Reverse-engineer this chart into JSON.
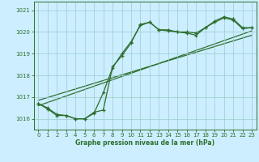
{
  "line1_x": [
    0,
    1,
    2,
    3,
    4,
    5,
    6,
    7,
    8,
    9,
    10,
    11,
    12,
    13,
    14,
    15,
    16,
    17,
    18,
    19,
    20,
    21,
    22,
    23
  ],
  "line1_y": [
    1016.7,
    1016.5,
    1016.2,
    1016.15,
    1016.0,
    1016.0,
    1016.3,
    1016.4,
    1018.4,
    1018.9,
    1019.5,
    1020.35,
    1020.45,
    1020.1,
    1020.1,
    1020.0,
    1020.0,
    1019.95,
    1020.2,
    1020.5,
    1020.7,
    1020.6,
    1020.2,
    1020.2
  ],
  "line2_x": [
    0,
    1,
    2,
    3,
    4,
    5,
    6,
    7,
    8,
    9,
    10,
    11,
    12,
    13,
    14,
    15,
    16,
    17,
    18,
    19,
    20,
    21,
    22,
    23
  ],
  "line2_y": [
    1016.7,
    1016.45,
    1016.15,
    1016.15,
    1016.0,
    1016.0,
    1016.25,
    1017.2,
    1018.35,
    1019.0,
    1019.55,
    1020.3,
    1020.45,
    1020.1,
    1020.05,
    1020.0,
    1019.95,
    1019.85,
    1020.2,
    1020.45,
    1020.65,
    1020.55,
    1020.15,
    1020.2
  ],
  "trend1_x": [
    0,
    23
  ],
  "trend1_y": [
    1016.6,
    1020.05
  ],
  "trend2_x": [
    0,
    23
  ],
  "trend2_y": [
    1016.85,
    1019.85
  ],
  "color": "#2d6e2d",
  "bg_color": "#cceeff",
  "grid_color": "#99cccc",
  "yticks": [
    1016,
    1017,
    1018,
    1019,
    1020,
    1021
  ],
  "xticks": [
    0,
    1,
    2,
    3,
    4,
    5,
    6,
    7,
    8,
    9,
    10,
    11,
    12,
    13,
    14,
    15,
    16,
    17,
    18,
    19,
    20,
    21,
    22,
    23
  ],
  "xlabel": "Graphe pression niveau de la mer (hPa)",
  "ylim": [
    1015.5,
    1021.4
  ],
  "xlim": [
    -0.5,
    23.5
  ],
  "marker_size": 3.0,
  "line_width": 0.9
}
